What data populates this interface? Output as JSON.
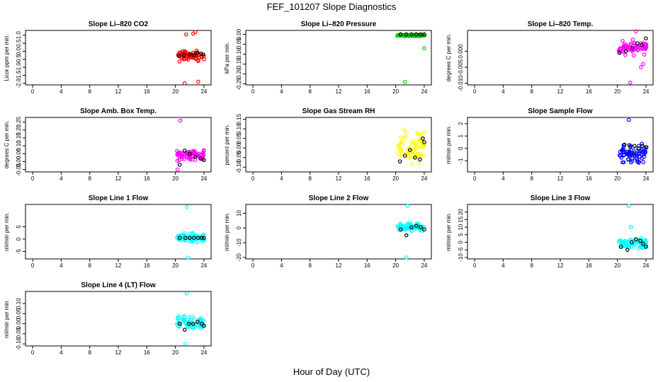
{
  "title": "FEF_101207  Slope Diagnostics",
  "xlabel": "Hour of Day (UTC)",
  "chart_data": [
    {
      "type": "scatter",
      "title": "Slope Li–820 CO2",
      "ylabel": "Licor ppm per min.",
      "x_ticks": [
        0,
        4,
        8,
        12,
        16,
        20,
        24
      ],
      "xlim": [
        -1,
        25
      ],
      "y_ticks": [
        "1.0",
        "0.5",
        "0.0",
        "-0.5",
        "-1.0",
        "-1.5",
        "-2.0"
      ],
      "y_tick_values": [
        1.0,
        0.5,
        0.0,
        -0.5,
        -1.0,
        -1.5,
        -2.0
      ],
      "ylim": [
        -2.1,
        1.3
      ],
      "color": "#ff0000",
      "center": -0.3,
      "spread": 0.45,
      "outliers": [
        [
          21.5,
          1.05
        ],
        [
          22.5,
          1.1
        ],
        [
          22.8,
          1.2
        ],
        [
          21.3,
          -2.0
        ],
        [
          23.2,
          -1.9
        ]
      ],
      "black_points": [
        [
          20.5,
          -0.3
        ],
        [
          21.2,
          -0.25
        ],
        [
          22.0,
          -0.2
        ],
        [
          22.6,
          -0.25
        ],
        [
          23.1,
          -0.1
        ],
        [
          23.6,
          -0.15
        ],
        [
          23.9,
          -0.2
        ]
      ]
    },
    {
      "type": "scatter",
      "title": "Slope Li–820 Pressure",
      "ylabel": "kPa per min.",
      "x_ticks": [
        0,
        4,
        8,
        12,
        16,
        20,
        24
      ],
      "xlim": [
        -1,
        25
      ],
      "y_ticks": [
        "0.00",
        "-0.05",
        "-0.10",
        "-0.15",
        "-0.20",
        "-0.25"
      ],
      "y_tick_values": [
        0.0,
        -0.05,
        -0.1,
        -0.15,
        -0.2,
        -0.25
      ],
      "ylim": [
        -0.255,
        0.02
      ],
      "color": "#00cc00",
      "center": -0.005,
      "spread": 0.006,
      "outliers": [
        [
          21.3,
          -0.24
        ],
        [
          24.0,
          -0.07
        ]
      ],
      "black_points": [
        [
          20.7,
          0.0
        ],
        [
          21.5,
          0.0
        ],
        [
          22.2,
          0.0
        ],
        [
          22.9,
          0.0
        ],
        [
          23.5,
          0.0
        ],
        [
          24.0,
          0.0
        ]
      ]
    },
    {
      "type": "scatter",
      "title": "Slope Li–820 Temp.",
      "ylabel": "degrees C per min.",
      "x_ticks": [
        0,
        4,
        8,
        12,
        16,
        20,
        24
      ],
      "xlim": [
        -1,
        25
      ],
      "y_ticks": [
        "0.000",
        "-0.005",
        "-0.010"
      ],
      "y_tick_values": [
        0.0,
        -0.005,
        -0.01
      ],
      "ylim": [
        -0.0105,
        0.0065
      ],
      "color": "#ff00ff",
      "center": 0.0012,
      "spread": 0.003,
      "outliers": [
        [
          22.6,
          0.0062
        ],
        [
          21.8,
          -0.0098
        ],
        [
          23.3,
          -0.005
        ],
        [
          23.6,
          -0.004
        ]
      ],
      "black_points": [
        [
          20.3,
          -0.0005
        ],
        [
          21.2,
          0.0
        ],
        [
          22.1,
          0.001
        ],
        [
          22.8,
          0.0025
        ],
        [
          23.4,
          0.002
        ],
        [
          24.0,
          0.004
        ]
      ]
    },
    {
      "type": "scatter",
      "title": "Slope Amb. Box Temp.",
      "ylabel": "degrees C per min.",
      "x_ticks": [
        0,
        4,
        8,
        12,
        16,
        20,
        24
      ],
      "xlim": [
        -1,
        25
      ],
      "y_ticks": [
        "0.25",
        "0.20",
        "0.15",
        "0.10",
        "0.05",
        "0.00",
        "-0.05"
      ],
      "y_tick_values": [
        0.25,
        0.2,
        0.15,
        0.1,
        0.05,
        0.0,
        -0.05
      ],
      "ylim": [
        -0.065,
        0.28
      ],
      "color": "#ff00ff",
      "center": 0.04,
      "spread": 0.05,
      "outliers": [
        [
          20.7,
          0.26
        ],
        [
          20.3,
          -0.05
        ]
      ],
      "black_points": [
        [
          20.6,
          -0.02
        ],
        [
          21.3,
          0.07
        ],
        [
          22.0,
          0.05
        ],
        [
          22.8,
          0.03
        ],
        [
          23.5,
          0.02
        ],
        [
          24.0,
          0.01
        ]
      ]
    },
    {
      "type": "scatter",
      "title": "Slope Gas Stream RH",
      "ylabel": "percent per min.",
      "x_ticks": [
        0,
        4,
        8,
        12,
        16,
        20,
        24
      ],
      "xlim": [
        -1,
        25
      ],
      "y_ticks": [
        "0.15",
        "0.10",
        "0.05",
        "0.00",
        "-0.05",
        "-0.10"
      ],
      "y_tick_values": [
        0.15,
        0.1,
        0.05,
        0.0,
        -0.05,
        -0.1
      ],
      "ylim": [
        -0.125,
        0.16
      ],
      "color": "#ffff00",
      "center": 0.01,
      "spread": 0.11,
      "outliers": [],
      "black_points": [
        [
          20.6,
          -0.07
        ],
        [
          21.3,
          -0.04
        ],
        [
          22.0,
          -0.01
        ],
        [
          22.7,
          -0.05
        ],
        [
          23.4,
          -0.06
        ],
        [
          23.8,
          0.05
        ],
        [
          24.0,
          0.03
        ]
      ]
    },
    {
      "type": "scatter",
      "title": "Slope Sample Flow",
      "ylabel": "ml/min per min.",
      "x_ticks": [
        0,
        4,
        8,
        12,
        16,
        20,
        24
      ],
      "xlim": [
        -1,
        25
      ],
      "y_ticks": [
        "2",
        "1",
        "0",
        "-1"
      ],
      "y_tick_values": [
        2,
        1,
        0,
        -1
      ],
      "ylim": [
        -1.9,
        2.5
      ],
      "color": "#0000ff",
      "center": -0.4,
      "spread": 1.0,
      "outliers": [
        [
          21.6,
          2.3
        ]
      ],
      "black_points": [
        [
          21.0,
          0.3
        ],
        [
          21.8,
          0.1
        ],
        [
          22.4,
          0.2
        ],
        [
          23.0,
          0.0
        ],
        [
          23.5,
          0.2
        ],
        [
          24.0,
          0.1
        ]
      ]
    },
    {
      "type": "scatter",
      "title": "Slope Line 1 Flow",
      "ylabel": "ml/min per min.",
      "x_ticks": [
        0,
        4,
        8,
        12,
        16,
        20,
        24
      ],
      "xlim": [
        -1,
        25
      ],
      "y_ticks": [
        "5",
        "0",
        "-5"
      ],
      "y_tick_values": [
        5,
        0,
        -5
      ],
      "ylim": [
        -8,
        14
      ],
      "color": "#00ffff",
      "center": 0.5,
      "spread": 2.5,
      "outliers": [
        [
          21.6,
          13
        ],
        [
          21.8,
          -7.5
        ]
      ],
      "black_points": [
        [
          20.6,
          0.5
        ],
        [
          21.4,
          0.5
        ],
        [
          22.0,
          0.5
        ],
        [
          22.6,
          0.5
        ],
        [
          23.2,
          0.5
        ],
        [
          23.7,
          0.5
        ],
        [
          24.0,
          0.5
        ]
      ]
    },
    {
      "type": "scatter",
      "title": "Slope Line 2 Flow",
      "ylabel": "ml/min per min.",
      "x_ticks": [
        0,
        4,
        8,
        12,
        16,
        20,
        24
      ],
      "xlim": [
        -1,
        25
      ],
      "y_ticks": [
        "10",
        "0",
        "-10",
        "-20"
      ],
      "y_tick_values": [
        10,
        0,
        -10,
        -20
      ],
      "ylim": [
        -21,
        16
      ],
      "color": "#00ffff",
      "center": 0.5,
      "spread": 3.5,
      "outliers": [
        [
          21.7,
          15
        ],
        [
          21.5,
          -20
        ]
      ],
      "black_points": [
        [
          20.7,
          -1
        ],
        [
          21.5,
          -5
        ],
        [
          22.2,
          0.5
        ],
        [
          22.9,
          1.5
        ],
        [
          23.5,
          0.5
        ],
        [
          24.0,
          -1
        ]
      ]
    },
    {
      "type": "scatter",
      "title": "Slope Line 3 Flow",
      "ylabel": "ml/min per min.",
      "x_ticks": [
        0,
        4,
        8,
        12,
        16,
        20,
        24
      ],
      "xlim": [
        -1,
        25
      ],
      "y_ticks": [
        "20",
        "15",
        "10",
        "5",
        "0",
        "-5",
        "-10"
      ],
      "y_tick_values": [
        20,
        15,
        10,
        5,
        0,
        -5,
        -10
      ],
      "ylim": [
        -11,
        25
      ],
      "color": "#00ffff",
      "center": -1,
      "spread": 5,
      "outliers": [
        [
          21.6,
          24
        ],
        [
          21.9,
          10
        ]
      ],
      "black_points": [
        [
          20.5,
          -3
        ],
        [
          21.4,
          -5
        ],
        [
          22.0,
          0
        ],
        [
          22.6,
          2
        ],
        [
          23.2,
          1
        ],
        [
          23.6,
          -1
        ],
        [
          24.0,
          -3
        ]
      ]
    },
    {
      "type": "scatter",
      "title": "Slope Line 4 (LT) Flow",
      "ylabel": "ml/min per min.",
      "x_ticks": [
        0,
        4,
        8,
        12,
        16,
        20,
        24
      ],
      "xlim": [
        -1,
        25
      ],
      "y_ticks": [
        "0.10",
        "0.05",
        "0.00",
        "-0.05",
        "-0.10"
      ],
      "y_tick_values": [
        0.1,
        0.05,
        0.0,
        -0.05,
        -0.1
      ],
      "ylim": [
        -0.11,
        0.16
      ],
      "color": "#00ffff",
      "center": 0.0,
      "spread": 0.05,
      "outliers": [
        [
          21.6,
          0.15
        ],
        [
          21.4,
          -0.1
        ]
      ],
      "black_points": [
        [
          20.6,
          0.0
        ],
        [
          21.3,
          -0.03
        ],
        [
          21.9,
          0.0
        ],
        [
          22.5,
          0.0
        ],
        [
          23.1,
          0.01
        ],
        [
          23.7,
          0.0
        ],
        [
          24.0,
          -0.01
        ]
      ]
    }
  ]
}
